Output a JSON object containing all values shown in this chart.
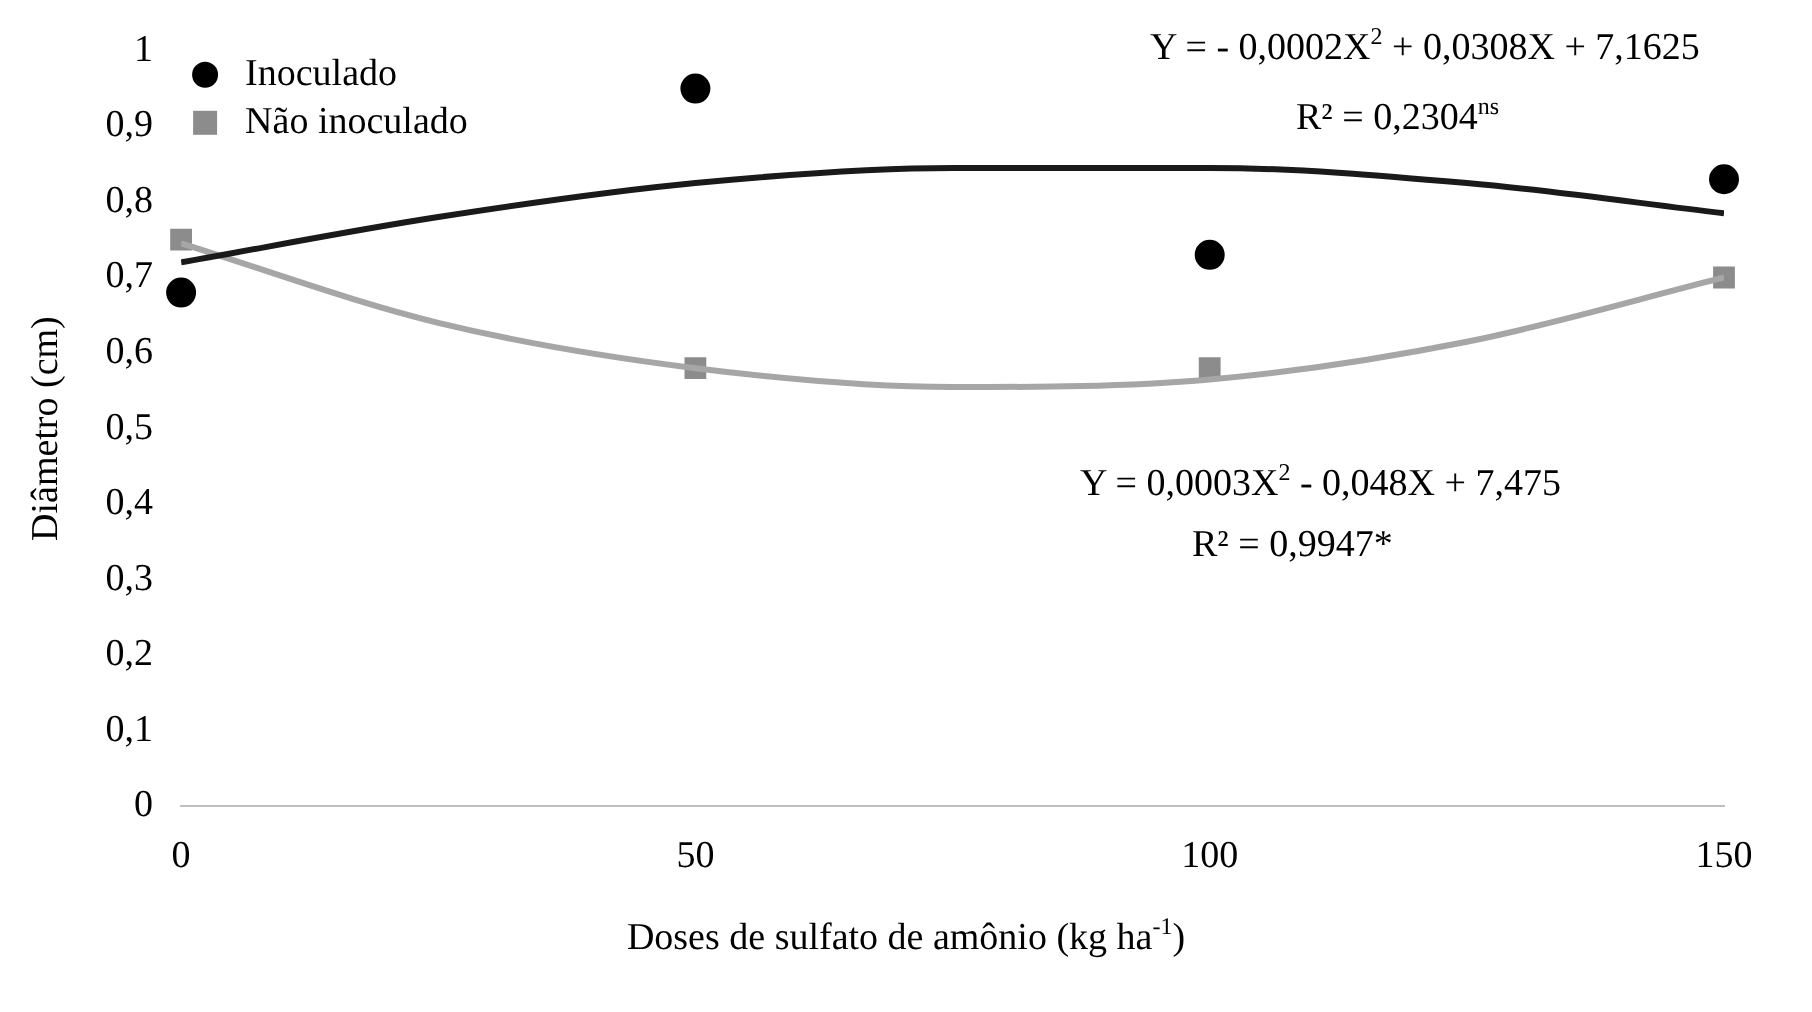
{
  "chart_data": {
    "type": "scatter",
    "ylabel": "Diâmetro (cm)",
    "xlabel": "Doses de sulfato de amônio (kg ha$^{-1}$)",
    "xlim": [
      0,
      150
    ],
    "xticks": [
      0,
      50,
      100,
      150
    ],
    "ylim": [
      0,
      1
    ],
    "yticks": [
      0,
      {
        "value": 0.1,
        "label": "0,1"
      },
      {
        "value": 0.2,
        "label": "0,2"
      },
      {
        "value": 0.3,
        "label": "0,3"
      },
      {
        "value": 0.4,
        "label": "0,4"
      },
      {
        "value": 0.5,
        "label": "0,5"
      },
      {
        "value": 0.6,
        "label": "0,6"
      },
      {
        "value": 0.7,
        "label": "0,7"
      },
      {
        "value": 0.8,
        "label": "0,8"
      },
      {
        "value": 0.9,
        "label": "0,9"
      },
      1
    ],
    "grid": false,
    "legend": "top left",
    "series": [
      {
        "name": "Inoculado",
        "marker": "circle",
        "color": "#000000",
        "x": [
          0,
          50,
          100,
          150
        ],
        "values": [
          0.68,
          0.95,
          0.73,
          0.83
        ]
      },
      {
        "name": "Não inoculado",
        "marker": "square",
        "color": "#8c8c8c",
        "x": [
          0,
          50,
          100,
          150
        ],
        "values": [
          0.75,
          0.58,
          0.58,
          0.7
        ]
      },
      {
        "type": "line",
        "marker": "none",
        "color": "#1a1a1a",
        "x": [
          0,
          25,
          50,
          75,
          100,
          125,
          150
        ],
        "values": [
          0.72,
          0.78,
          0.825,
          0.845,
          0.845,
          0.825,
          0.785
        ]
      },
      {
        "type": "line",
        "marker": "none",
        "color": "#a6a6a6",
        "x": [
          0,
          25,
          50,
          75,
          100,
          125,
          150
        ],
        "values": [
          0.745,
          0.64,
          0.58,
          0.555,
          0.565,
          0.615,
          0.7
        ]
      }
    ],
    "annotations": [
      "Y = - 0,0002X$^{2}$ + 0,0308X + 7,1625",
      "R² = 0,2304$^{ns}$",
      "Y = 0,0003X$^{2}$ - 0,048X + 7,475",
      "R² = 0,9947*"
    ]
  }
}
